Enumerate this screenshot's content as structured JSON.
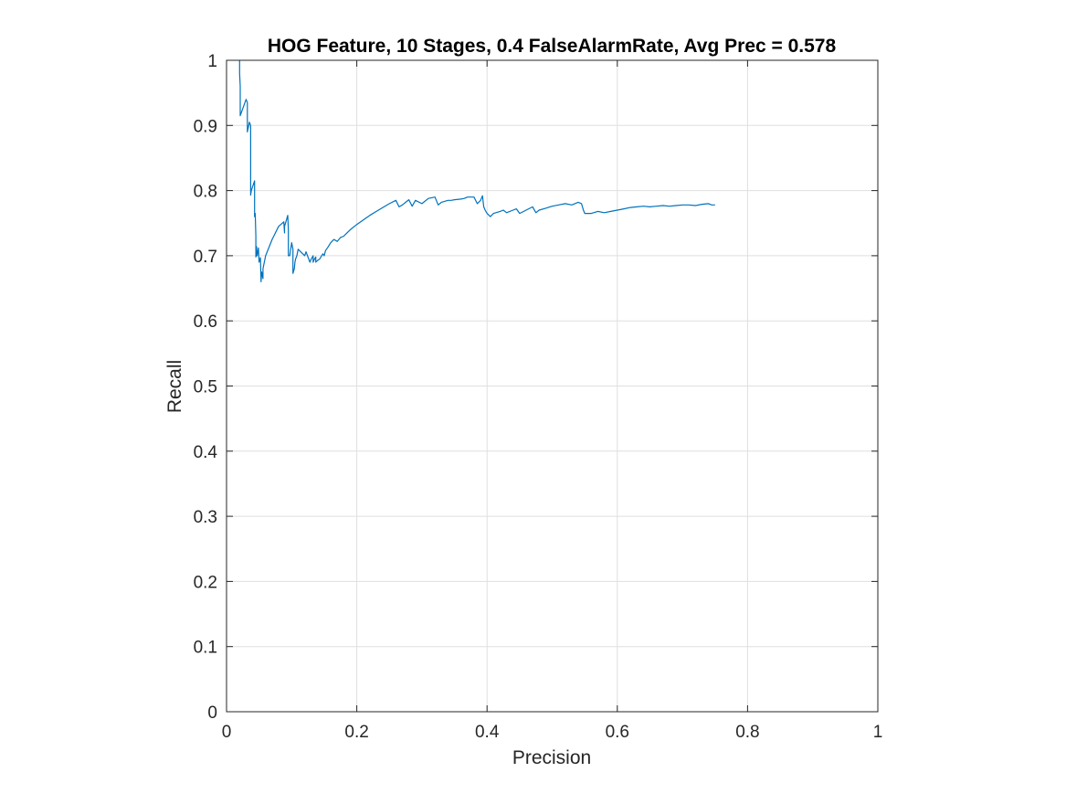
{
  "chart_data": {
    "type": "line",
    "title": "HOG Feature, 10 Stages, 0.4 FalseAlarmRate, Avg Prec = 0.578",
    "xlabel": "Precision",
    "ylabel": "Recall",
    "xlim": [
      0,
      1
    ],
    "ylim": [
      0,
      1
    ],
    "xticks": [
      0,
      0.2,
      0.4,
      0.6,
      0.8,
      1
    ],
    "xtick_labels": [
      "0",
      "0.2",
      "0.4",
      "0.6",
      "0.8",
      "1"
    ],
    "yticks": [
      0,
      0.1,
      0.2,
      0.3,
      0.4,
      0.5,
      0.6,
      0.7,
      0.8,
      0.9,
      1
    ],
    "ytick_labels": [
      "0",
      "0.1",
      "0.2",
      "0.3",
      "0.4",
      "0.5",
      "0.6",
      "0.7",
      "0.8",
      "0.9",
      "1"
    ],
    "grid": true,
    "line_color": "#0072bd",
    "series": [
      {
        "x": [
          0.02,
          0.02,
          0.021,
          0.021,
          0.03,
          0.032,
          0.032,
          0.035,
          0.037,
          0.037,
          0.038,
          0.043,
          0.043,
          0.044,
          0.045,
          0.045,
          0.046,
          0.046,
          0.047,
          0.049,
          0.05,
          0.052,
          0.053,
          0.054,
          0.056,
          0.056,
          0.06,
          0.07,
          0.08,
          0.088,
          0.089,
          0.089,
          0.092,
          0.094,
          0.095,
          0.095,
          0.097,
          0.1,
          0.102,
          0.102,
          0.104,
          0.105,
          0.106,
          0.108,
          0.11,
          0.12,
          0.122,
          0.128,
          0.13,
          0.133,
          0.133,
          0.135,
          0.137,
          0.137,
          0.14,
          0.143,
          0.146,
          0.148,
          0.15,
          0.152,
          0.155,
          0.16,
          0.165,
          0.17,
          0.175,
          0.18,
          0.185,
          0.19,
          0.2,
          0.21,
          0.22,
          0.23,
          0.24,
          0.25,
          0.26,
          0.265,
          0.27,
          0.275,
          0.28,
          0.285,
          0.29,
          0.3,
          0.31,
          0.32,
          0.325,
          0.33,
          0.34,
          0.345,
          0.35,
          0.36,
          0.365,
          0.37,
          0.38,
          0.385,
          0.39,
          0.393,
          0.395,
          0.397,
          0.4,
          0.405,
          0.41,
          0.42,
          0.425,
          0.43,
          0.44,
          0.445,
          0.45,
          0.46,
          0.47,
          0.475,
          0.48,
          0.49,
          0.5,
          0.51,
          0.52,
          0.53,
          0.54,
          0.545,
          0.548,
          0.55,
          0.56,
          0.57,
          0.58,
          0.59,
          0.6,
          0.61,
          0.62,
          0.63,
          0.64,
          0.65,
          0.66,
          0.67,
          0.68,
          0.69,
          0.7,
          0.71,
          0.72,
          0.73,
          0.74,
          0.745,
          0.75
        ],
        "y": [
          1.0,
          0.98,
          0.96,
          0.915,
          0.94,
          0.935,
          0.89,
          0.905,
          0.9,
          0.793,
          0.8,
          0.815,
          0.76,
          0.765,
          0.73,
          0.698,
          0.703,
          0.714,
          0.7,
          0.712,
          0.69,
          0.697,
          0.66,
          0.675,
          0.665,
          0.68,
          0.7,
          0.725,
          0.745,
          0.752,
          0.735,
          0.745,
          0.755,
          0.762,
          0.74,
          0.7,
          0.7,
          0.72,
          0.71,
          0.673,
          0.68,
          0.69,
          0.695,
          0.7,
          0.71,
          0.7,
          0.706,
          0.69,
          0.695,
          0.7,
          0.69,
          0.695,
          0.698,
          0.69,
          0.693,
          0.695,
          0.7,
          0.703,
          0.7,
          0.708,
          0.712,
          0.72,
          0.725,
          0.722,
          0.728,
          0.73,
          0.735,
          0.74,
          0.748,
          0.755,
          0.762,
          0.768,
          0.774,
          0.78,
          0.785,
          0.775,
          0.778,
          0.782,
          0.786,
          0.776,
          0.785,
          0.78,
          0.788,
          0.79,
          0.778,
          0.782,
          0.785,
          0.785,
          0.786,
          0.787,
          0.788,
          0.79,
          0.79,
          0.78,
          0.785,
          0.792,
          0.775,
          0.77,
          0.765,
          0.76,
          0.765,
          0.768,
          0.77,
          0.766,
          0.77,
          0.772,
          0.765,
          0.77,
          0.775,
          0.766,
          0.77,
          0.773,
          0.776,
          0.778,
          0.78,
          0.778,
          0.782,
          0.78,
          0.77,
          0.765,
          0.765,
          0.768,
          0.766,
          0.768,
          0.77,
          0.772,
          0.774,
          0.775,
          0.776,
          0.775,
          0.776,
          0.777,
          0.776,
          0.777,
          0.778,
          0.778,
          0.777,
          0.779,
          0.78,
          0.778,
          0.778
        ]
      }
    ]
  }
}
